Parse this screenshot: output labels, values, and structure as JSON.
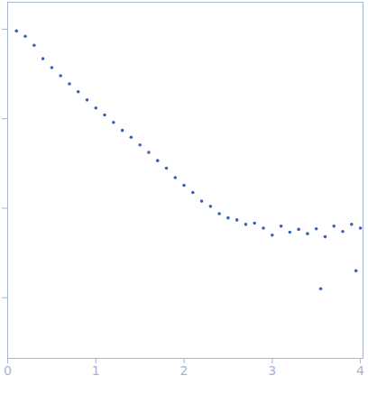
{
  "chart_data": {
    "type": "scatter",
    "color": "#3a62b0",
    "marker": "circle",
    "log": "y",
    "tick_labels": "x",
    "x": [
      0.1,
      0.2,
      0.3,
      0.4,
      0.5,
      0.6,
      0.7,
      0.8,
      0.9,
      1.0,
      1.1,
      1.2,
      1.3,
      1.4,
      1.5,
      1.6,
      1.7,
      1.8,
      1.9,
      2.0,
      2.1,
      2.2,
      2.3,
      2.4,
      2.5,
      2.6,
      2.7,
      2.8,
      2.9,
      3.0,
      3.1,
      3.2,
      3.3,
      3.4,
      3.5,
      3.55,
      3.6,
      3.7,
      3.8,
      3.9,
      3.95,
      4.0
    ],
    "values": [
      0.955,
      0.832,
      0.661,
      0.468,
      0.372,
      0.302,
      0.245,
      0.2,
      0.162,
      0.132,
      0.11,
      0.091,
      0.074,
      0.062,
      0.051,
      0.042,
      0.034,
      0.028,
      0.022,
      0.018,
      0.015,
      0.012,
      0.0105,
      0.0087,
      0.0078,
      0.0074,
      0.0066,
      0.0068,
      0.006,
      0.005,
      0.0063,
      0.0054,
      0.0058,
      0.0052,
      0.0059,
      0.00126,
      0.0048,
      0.0063,
      0.0055,
      0.0066,
      0.002,
      0.006
    ],
    "xlim": [
      0,
      4.03
    ],
    "xticks": [
      0,
      1,
      2,
      3,
      4
    ],
    "ylim": [
      0.00021,
      2
    ],
    "yticks": [
      0.001,
      0.01,
      0.1,
      1
    ]
  }
}
